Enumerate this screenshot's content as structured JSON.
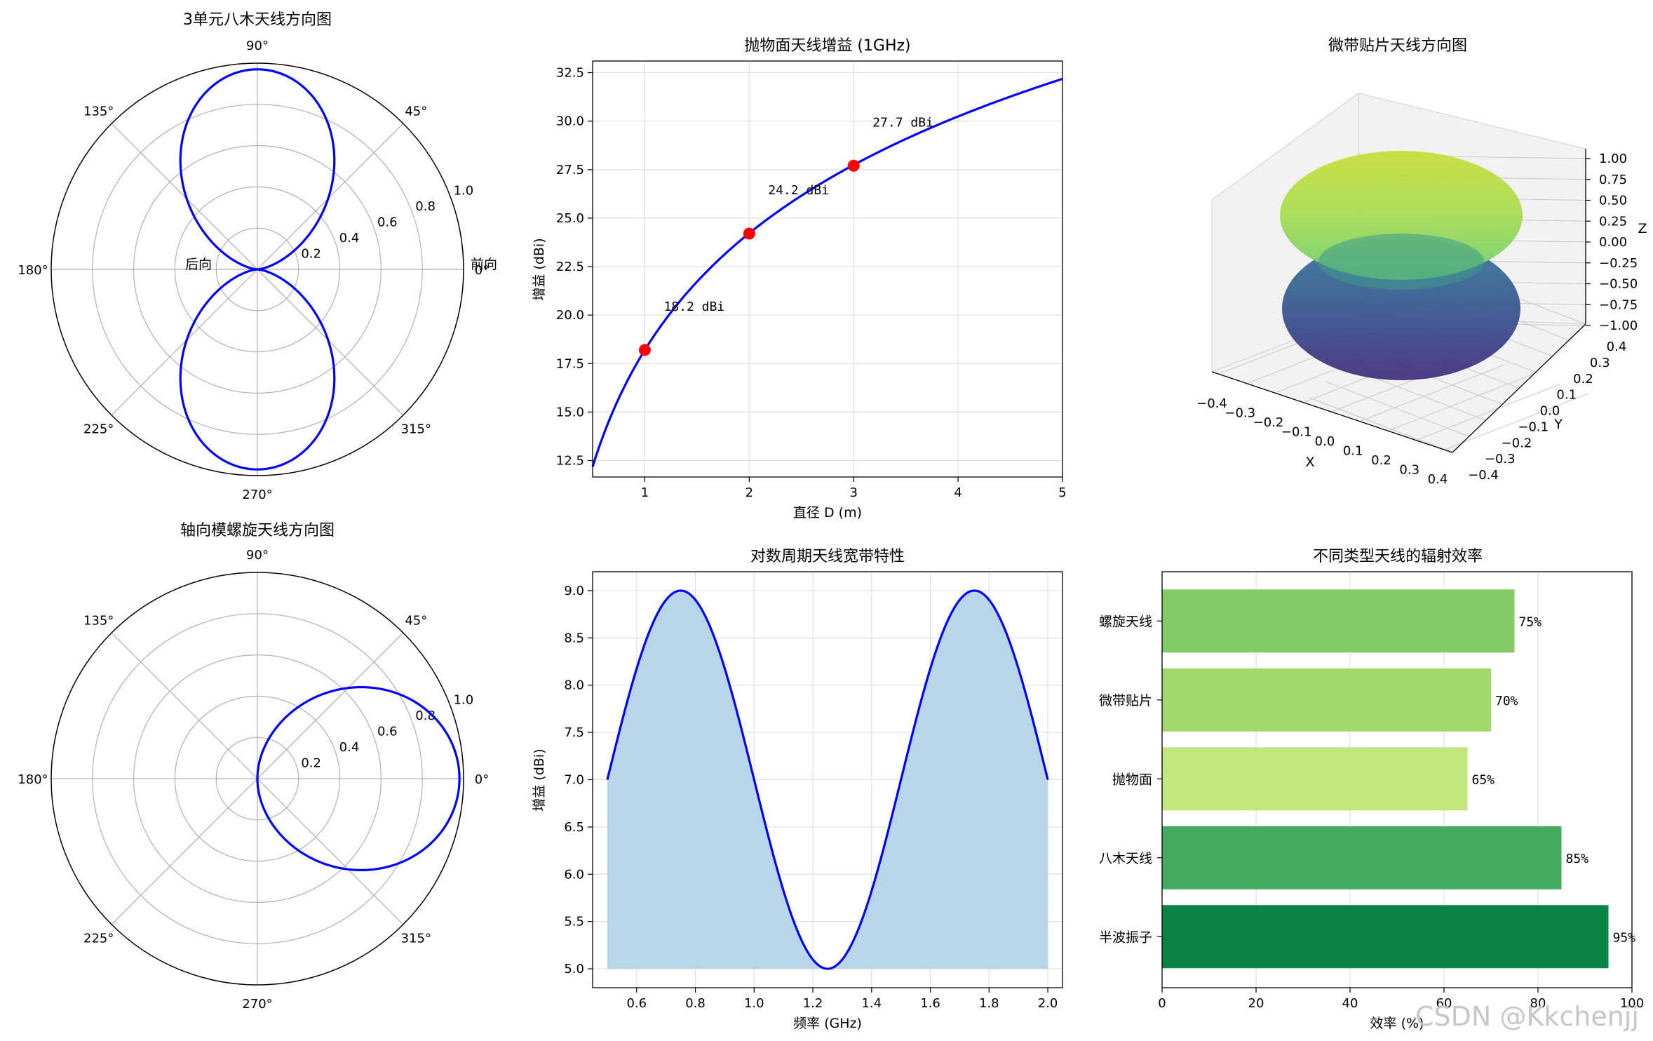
{
  "chart_data": [
    {
      "id": "yagi",
      "type": "polar",
      "title": "3单元八木天线方向图",
      "angle_ticks": [
        "0°",
        "45°",
        "90°",
        "135°",
        "180°",
        "225°",
        "270°",
        "315°"
      ],
      "radial_ticks": [
        "0.2",
        "0.4",
        "0.6",
        "0.8",
        "1.0"
      ],
      "rmax": 1.0,
      "pattern": "dipole_vertical",
      "annotations": {
        "front": "前向",
        "back": "后向"
      },
      "line_color": "#0000ff"
    },
    {
      "id": "parabolic",
      "type": "line",
      "title": "抛物面天线增益 (1GHz)",
      "xlabel": "直径 D (m)",
      "ylabel": "增益 (dBi)",
      "xlim": [
        0.5,
        5.0
      ],
      "ylim": [
        11.65,
        33.1
      ],
      "x_ticks": [
        1,
        2,
        3,
        4,
        5
      ],
      "y_ticks": [
        12.5,
        15.0,
        17.5,
        20.0,
        22.5,
        25.0,
        27.5,
        30.0,
        32.5
      ],
      "curve": {
        "formula": "20*log10(D)+18.2",
        "x_start": 0.5,
        "x_end": 5.0
      },
      "points": [
        {
          "x": 1,
          "y": 18.2,
          "label": "18.2 dBi"
        },
        {
          "x": 2,
          "y": 24.2,
          "label": "24.2 dBi"
        },
        {
          "x": 3,
          "y": 27.7,
          "label": "27.7 dBi"
        }
      ],
      "line_color": "#0000ff",
      "marker_color": "#ff0000"
    },
    {
      "id": "patch3d",
      "type": "surface3d",
      "title": "微带贴片天线方向图",
      "xlabel": "X",
      "ylabel": "Y",
      "zlabel": "Z",
      "x_ticks": [
        "−0.4",
        "−0.3",
        "−0.2",
        "−0.1",
        "0.0",
        "0.1",
        "0.2",
        "0.3",
        "0.4"
      ],
      "y_ticks": [
        "−0.4",
        "−0.3",
        "−0.2",
        "−0.1",
        "0.0",
        "0.1",
        "0.2",
        "0.3",
        "0.4"
      ],
      "z_ticks": [
        "1.00",
        "0.75",
        "0.50",
        "0.25",
        "0.00",
        "−0.25",
        "−0.50",
        "−0.75",
        "−1.00"
      ],
      "colormap": "viridis"
    },
    {
      "id": "helix",
      "type": "polar",
      "title": "轴向模螺旋天线方向图",
      "angle_ticks": [
        "0°",
        "45°",
        "90°",
        "135°",
        "180°",
        "225°",
        "270°",
        "315°"
      ],
      "radial_ticks": [
        "0.2",
        "0.4",
        "0.6",
        "0.8",
        "1.0"
      ],
      "rmax": 1.0,
      "pattern": "cardioid_axial",
      "line_color": "#0000ff"
    },
    {
      "id": "logperiodic",
      "type": "area",
      "title": "对数周期天线宽带特性",
      "xlabel": "频率 (GHz)",
      "ylabel": "增益 (dBi)",
      "xlim": [
        0.45,
        2.05
      ],
      "ylim": [
        4.8,
        9.2
      ],
      "x_ticks": [
        "0.6",
        "0.8",
        "1.0",
        "1.2",
        "1.4",
        "1.6",
        "1.8",
        "2.0"
      ],
      "y_ticks": [
        "5.0",
        "5.5",
        "6.0",
        "6.5",
        "7.0",
        "7.5",
        "8.0",
        "8.5",
        "9.0"
      ],
      "curve": {
        "formula": "7+2*sin(2*pi*(f-0.5))",
        "x_start": 0.5,
        "x_end": 2.0,
        "fill_base": 5.0
      },
      "line_color": "#0000ff",
      "fill_color": "#b8d5ea"
    },
    {
      "id": "efficiency",
      "type": "bar",
      "orientation": "horizontal",
      "title": "不同类型天线的辐射效率",
      "xlabel": "效率 (%)",
      "xlim": [
        0,
        100
      ],
      "x_ticks": [
        "0",
        "20",
        "40",
        "60",
        "80",
        "100"
      ],
      "categories": [
        "半波振子",
        "八木天线",
        "抛物面",
        "微带贴片",
        "螺旋天线"
      ],
      "values": [
        95,
        85,
        65,
        70,
        75
      ],
      "value_labels": [
        "95%",
        "85%",
        "65%",
        "70%",
        "75%"
      ],
      "colors": [
        "#0a8445",
        "#42ab5d",
        "#c2e57c",
        "#a2d96a",
        "#84ca66"
      ]
    }
  ],
  "watermark": "CSDN @Kkchenjj"
}
